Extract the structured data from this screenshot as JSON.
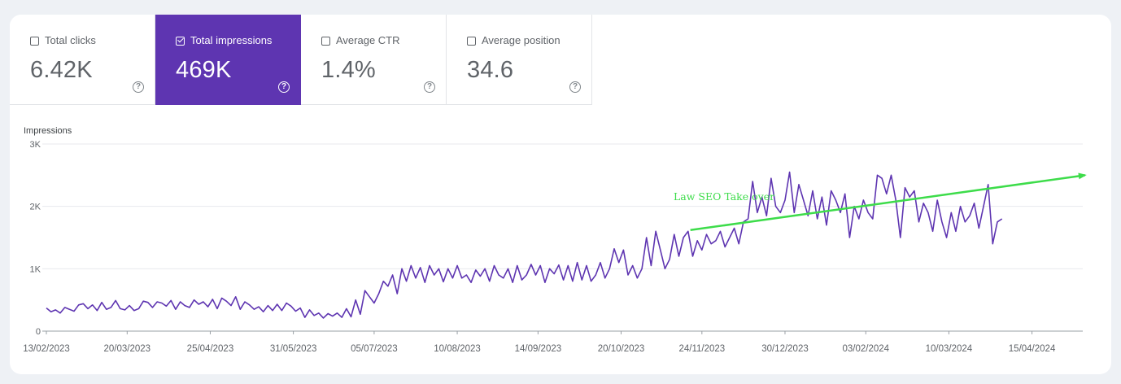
{
  "metrics": [
    {
      "label": "Total clicks",
      "value": "6.42K",
      "selected": false
    },
    {
      "label": "Total impressions",
      "value": "469K",
      "selected": true
    },
    {
      "label": "Average CTR",
      "value": "1.4%",
      "selected": false
    },
    {
      "label": "Average position",
      "value": "34.6",
      "selected": false
    }
  ],
  "help_glyph": "?",
  "colors": {
    "accent": "#5e35b1",
    "line": "#5e35b1",
    "annotation": "#3ddc4a",
    "grid": "#e8eaed"
  },
  "chart_data": {
    "type": "line",
    "ylabel": "Impressions",
    "ylim": [
      0,
      3000
    ],
    "yticks": [
      0,
      1000,
      2000,
      3000
    ],
    "ytick_labels": [
      "0",
      "1K",
      "2K",
      "3K"
    ],
    "xlim": [
      "2023-02-13",
      "2024-05-07"
    ],
    "xticks": [
      "2023-02-13",
      "2023-03-20",
      "2023-04-25",
      "2023-05-31",
      "2023-07-05",
      "2023-08-10",
      "2023-09-14",
      "2023-10-20",
      "2023-11-24",
      "2023-12-30",
      "2024-02-03",
      "2024-03-10",
      "2024-04-15"
    ],
    "xtick_labels": [
      "13/02/2023",
      "20/03/2023",
      "25/04/2023",
      "31/05/2023",
      "05/07/2023",
      "10/08/2023",
      "14/09/2023",
      "20/10/2023",
      "24/11/2023",
      "30/12/2023",
      "03/02/2024",
      "10/03/2024",
      "15/04/2024"
    ],
    "grid": true,
    "series": [
      {
        "start": "2023-02-13",
        "step_days": 2,
        "values": [
          370,
          310,
          340,
          290,
          380,
          350,
          320,
          420,
          440,
          360,
          420,
          330,
          460,
          350,
          380,
          490,
          360,
          340,
          410,
          330,
          360,
          480,
          460,
          380,
          470,
          450,
          400,
          490,
          350,
          470,
          410,
          380,
          500,
          430,
          470,
          390,
          510,
          360,
          530,
          480,
          410,
          550,
          350,
          470,
          420,
          350,
          390,
          310,
          410,
          330,
          430,
          330,
          450,
          400,
          320,
          370,
          220,
          340,
          250,
          290,
          210,
          280,
          240,
          290,
          220,
          360,
          230,
          500,
          270,
          650,
          550,
          450,
          600,
          800,
          720,
          900,
          600,
          1000,
          800,
          1050,
          850,
          1020,
          780,
          1050,
          900,
          1000,
          790,
          1000,
          850,
          1050,
          850,
          900,
          780,
          980,
          880,
          1000,
          800,
          1050,
          900,
          850,
          1000,
          780,
          1050,
          820,
          900,
          1070,
          900,
          1050,
          780,
          1000,
          920,
          1060,
          820,
          1050,
          800,
          1100,
          820,
          1050,
          800,
          900,
          1100,
          850,
          1000,
          1320,
          1100,
          1300,
          900,
          1050,
          850,
          1000,
          1500,
          1050,
          1600,
          1300,
          1000,
          1150,
          1550,
          1200,
          1500,
          1600,
          1200,
          1450,
          1300,
          1550,
          1400,
          1450,
          1600,
          1350,
          1500,
          1650,
          1400,
          1750,
          1800,
          2400,
          1900,
          2150,
          1850,
          2450,
          2000,
          1900,
          2100,
          2550,
          1900,
          2350,
          2100,
          1850,
          2250,
          1800,
          2150,
          1700,
          2250,
          2100,
          1900,
          2200,
          1500,
          2000,
          1800,
          2100,
          1900,
          1800,
          2500,
          2450,
          2200,
          2500,
          2100,
          1500,
          2300,
          2150,
          2250,
          1750,
          2050,
          1900,
          1600,
          2100,
          1750,
          1500,
          1900,
          1600,
          2000,
          1750,
          1850,
          2050,
          1650,
          2000,
          2350,
          1400,
          1750,
          1800
        ]
      }
    ],
    "annotations": [
      {
        "text": "Law SEO Take over",
        "from": [
          "2023-11-19",
          1620
        ],
        "to": [
          "2024-05-08",
          2500
        ]
      }
    ]
  }
}
